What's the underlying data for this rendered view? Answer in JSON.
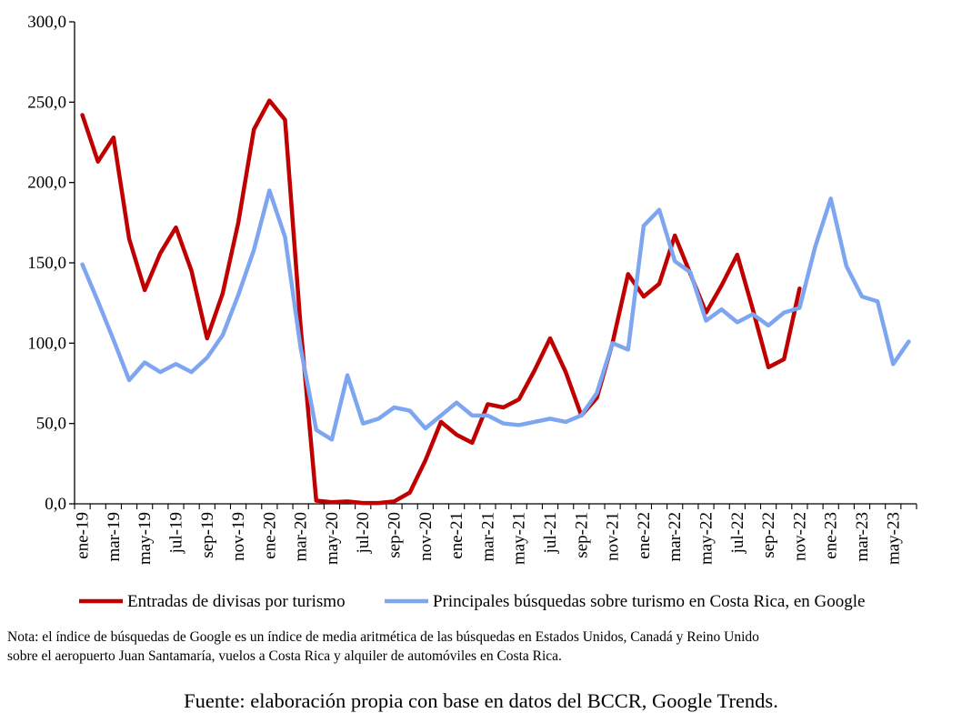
{
  "chart_data": {
    "type": "line",
    "title": "",
    "xlabel": "",
    "ylabel": "",
    "ylim": [
      0,
      300
    ],
    "yticks": [
      "0,0",
      "50,0",
      "100,0",
      "150,0",
      "200,0",
      "250,0",
      "300,0"
    ],
    "grid": false,
    "legend_position": "bottom",
    "x": [
      "ene-19",
      "feb-19",
      "mar-19",
      "abr-19",
      "may-19",
      "jun-19",
      "jul-19",
      "ago-19",
      "sep-19",
      "oct-19",
      "nov-19",
      "dic-19",
      "ene-20",
      "feb-20",
      "mar-20",
      "abr-20",
      "may-20",
      "jun-20",
      "jul-20",
      "ago-20",
      "sep-20",
      "oct-20",
      "nov-20",
      "dic-20",
      "ene-21",
      "feb-21",
      "mar-21",
      "abr-21",
      "may-21",
      "jun-21",
      "jul-21",
      "ago-21",
      "sep-21",
      "oct-21",
      "nov-21",
      "dic-21",
      "ene-22",
      "feb-22",
      "mar-22",
      "abr-22",
      "may-22",
      "jun-22",
      "jul-22",
      "ago-22",
      "sep-22",
      "oct-22",
      "nov-22",
      "dic-22",
      "ene-23",
      "feb-23",
      "mar-23",
      "abr-23",
      "may-23",
      "jun-23"
    ],
    "x_tick_labels": [
      "ene-19",
      "mar-19",
      "may-19",
      "jul-19",
      "sep-19",
      "nov-19",
      "ene-20",
      "mar-20",
      "may-20",
      "jul-20",
      "sep-20",
      "nov-20",
      "ene-21",
      "mar-21",
      "may-21",
      "jul-21",
      "sep-21",
      "nov-21",
      "ene-22",
      "mar-22",
      "may-22",
      "jul-22",
      "sep-22",
      "nov-22",
      "ene-23",
      "mar-23",
      "may-23"
    ],
    "series": [
      {
        "name": "Entradas de divisas por turismo",
        "color": "#c00000",
        "values": [
          242,
          213,
          228,
          165,
          133,
          156,
          172,
          145,
          103,
          131,
          175,
          233,
          251,
          239,
          110,
          2,
          1,
          1.5,
          0.5,
          0.5,
          1.5,
          7,
          27,
          51,
          43,
          38,
          62,
          60,
          65,
          83,
          103,
          82,
          55,
          66,
          100,
          143,
          129,
          137,
          167,
          143,
          119,
          136,
          155,
          121,
          85,
          90,
          134,
          null,
          null,
          null,
          null,
          null,
          null,
          null
        ]
      },
      {
        "name": "Principales búsquedas sobre turismo en Costa Rica, en Google",
        "color": "#7ea6f0",
        "values": [
          149,
          126,
          102,
          77,
          88,
          82,
          87,
          82,
          91,
          105,
          130,
          158,
          195,
          166,
          97,
          46,
          40,
          80,
          50,
          53,
          60,
          58,
          47,
          55,
          63,
          55,
          55,
          50,
          49,
          51,
          53,
          51,
          55,
          69,
          100,
          96,
          173,
          183,
          151,
          144,
          114,
          121,
          113,
          118,
          111,
          119,
          122,
          160,
          190,
          148,
          129,
          126,
          87,
          101
        ]
      }
    ]
  },
  "note": "Nota: el índice de búsquedas de Google es un índice de media aritmética de las búsquedas en Estados Unidos, Canadá y Reino Unido\nsobre el aeropuerto Juan Santamaría, vuelos a Costa Rica y alquiler de automóviles en Costa Rica.",
  "source": "Fuente: elaboración propia con base en datos del BCCR, Google Trends."
}
